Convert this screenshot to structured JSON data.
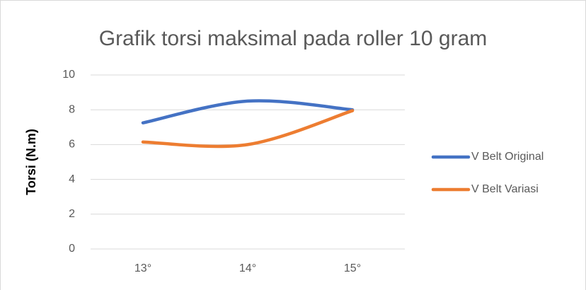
{
  "chart_data": {
    "type": "line",
    "title": "Grafik torsi maksimal pada roller 10 gram",
    "y_label": "Torsi (N.m)",
    "categories": [
      "13°",
      "14°",
      "15°"
    ],
    "series": [
      {
        "name": "V Belt Original",
        "color": "#4472c4",
        "values": [
          7.25,
          8.5,
          8.0
        ]
      },
      {
        "name": "V Belt Variasi",
        "color": "#ed7d31",
        "values": [
          6.15,
          6.0,
          7.95
        ]
      }
    ],
    "ylim": [
      0,
      10
    ],
    "yticks": [
      0,
      2,
      4,
      6,
      8,
      10
    ],
    "grid": true,
    "smooth": true,
    "legend": "right"
  }
}
